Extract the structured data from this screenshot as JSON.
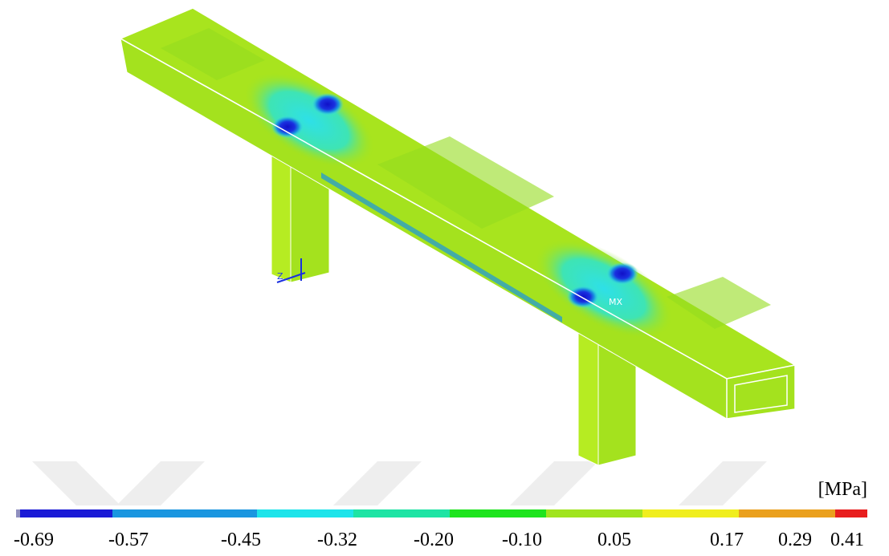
{
  "model": {
    "max_label": "MX",
    "axis_label": "Z"
  },
  "legend": {
    "unit": "[MPa]",
    "labels": [
      "-0.69",
      "-0.57",
      "-0.45",
      "-0.32",
      "-0.20",
      "-0.10",
      "0.05",
      "0.17",
      "0.29",
      "0.41"
    ],
    "colors": [
      "#1a1ad6",
      "#1a96e0",
      "#1ee4ea",
      "#1ee4a4",
      "#1ee41e",
      "#a0e41e",
      "#f0ee1e",
      "#eaa01e",
      "#e81e1e"
    ]
  }
}
